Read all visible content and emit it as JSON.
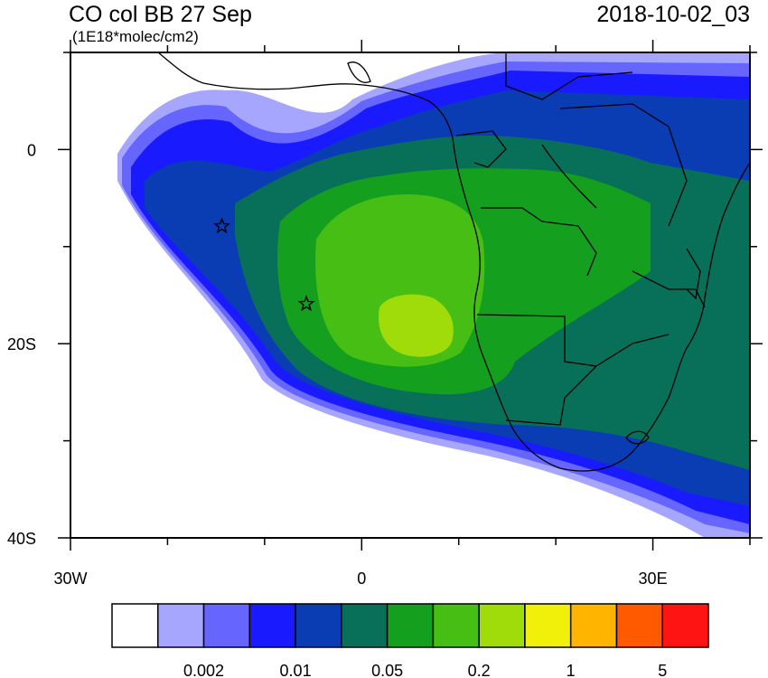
{
  "title": "CO col BB 27 Sep",
  "units": "(1E18*molec/cm2)",
  "valid_time": "2018-10-02_03",
  "lat_labels": [
    {
      "text": "0",
      "lat": 0
    },
    {
      "text": "20S",
      "lat": -20
    },
    {
      "text": "40S",
      "lat": -40
    }
  ],
  "lon_labels": [
    {
      "text": "30W",
      "lon": -30
    },
    {
      "text": "0",
      "lon": 0
    },
    {
      "text": "30E",
      "lon": 30
    }
  ],
  "map_extent": {
    "lon_min": -30,
    "lon_max": 40,
    "lat_min": -40,
    "lat_max": 10
  },
  "colorbar": {
    "colors": [
      "#ffffff",
      "#a6a6ff",
      "#6666ff",
      "#1a1aff",
      "#0a3cb4",
      "#087058",
      "#14a01e",
      "#46be14",
      "#a0dc0a",
      "#f0f00a",
      "#ffb400",
      "#ff5a00",
      "#ff1414"
    ],
    "labels": [
      "0.002",
      "0.01",
      "0.05",
      "0.2",
      "1",
      "5"
    ]
  },
  "markers": [
    {
      "name": "star-marker",
      "lon": -14.4,
      "lat": -7.9
    },
    {
      "name": "star-marker",
      "lon": -5.7,
      "lat": -15.9
    }
  ]
}
